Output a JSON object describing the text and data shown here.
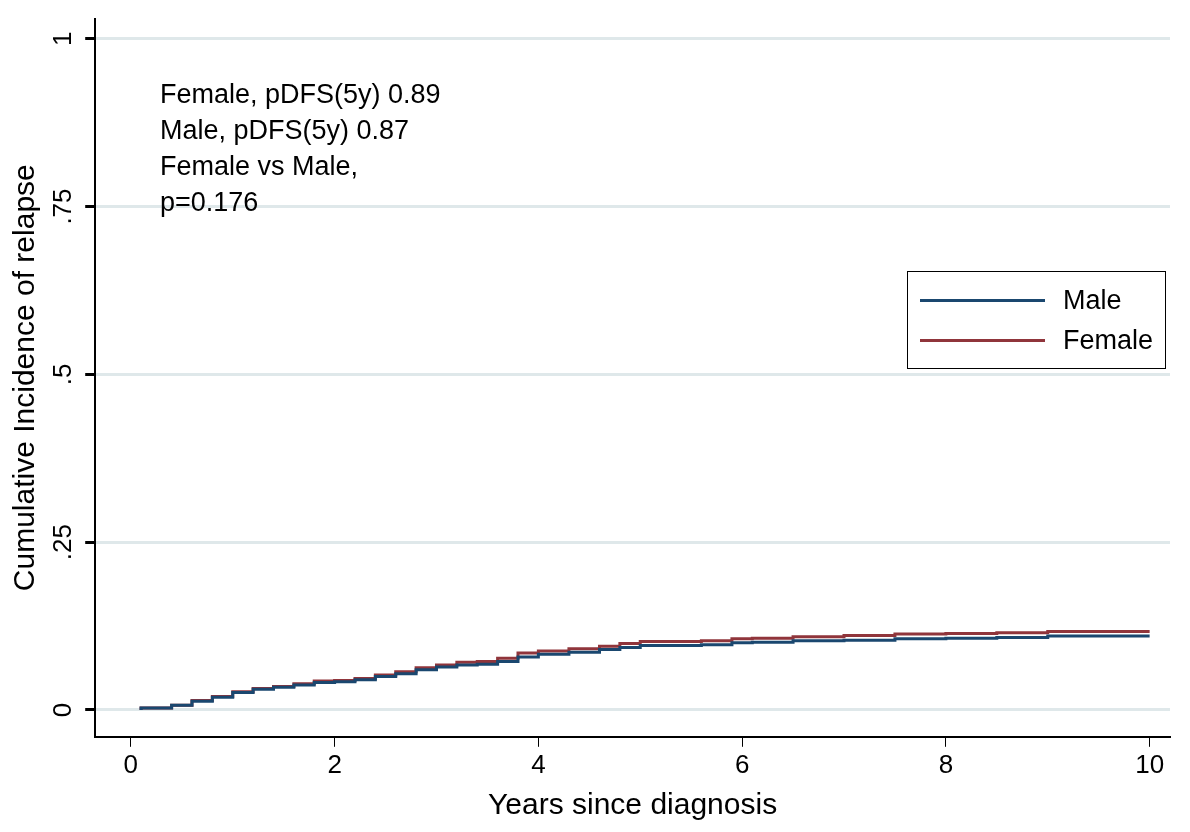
{
  "chart_data": {
    "type": "step",
    "xlabel": "Years since diagnosis",
    "ylabel": "Cumulative Incidence of relapse",
    "x": [
      0.1,
      0.4,
      0.6,
      0.8,
      1,
      1.2,
      1.4,
      1.6,
      1.8,
      2,
      2.2,
      2.4,
      2.6,
      2.8,
      3,
      3.2,
      3.4,
      3.6,
      3.8,
      4,
      4.3,
      4.6,
      4.8,
      5,
      5.3,
      5.6,
      5.9,
      6.1,
      6.5,
      7,
      7.5,
      8,
      8.5,
      9,
      9.4,
      10
    ],
    "series": [
      {
        "name": "Male",
        "color": "#1a476f",
        "values": [
          0,
          0.003,
          0.007,
          0.013,
          0.019,
          0.026,
          0.031,
          0.034,
          0.037,
          0.041,
          0.042,
          0.045,
          0.05,
          0.054,
          0.06,
          0.064,
          0.067,
          0.068,
          0.072,
          0.079,
          0.083,
          0.086,
          0.09,
          0.093,
          0.096,
          0.096,
          0.097,
          0.1,
          0.101,
          0.103,
          0.104,
          0.106,
          0.107,
          0.108,
          0.11,
          0.11
        ]
      },
      {
        "name": "Female",
        "color": "#90353b",
        "values": [
          0,
          0.003,
          0.007,
          0.014,
          0.02,
          0.027,
          0.032,
          0.035,
          0.039,
          0.043,
          0.044,
          0.047,
          0.052,
          0.057,
          0.063,
          0.067,
          0.071,
          0.072,
          0.077,
          0.085,
          0.088,
          0.091,
          0.095,
          0.099,
          0.102,
          0.102,
          0.103,
          0.106,
          0.107,
          0.109,
          0.111,
          0.113,
          0.114,
          0.115,
          0.117,
          0.117
        ]
      }
    ],
    "xlim": [
      -0.35,
      10.2
    ],
    "xticks": [
      0,
      2,
      4,
      6,
      8,
      10
    ],
    "ylim": [
      -0.04,
      1.03
    ],
    "yticks": [
      {
        "value": 0,
        "label": "0"
      },
      {
        "value": 0.25,
        "label": ".25"
      },
      {
        "value": 0.5,
        "label": ".5"
      },
      {
        "value": 0.75,
        "label": ".75"
      },
      {
        "value": 1,
        "label": "1"
      }
    ],
    "grid": "y",
    "legend": "right",
    "annotations": [
      "Female, pDFS(5y) 0.89",
      "Male, pDFS(5y) 0.87",
      "Female vs Male,",
      "p=0.176"
    ]
  }
}
